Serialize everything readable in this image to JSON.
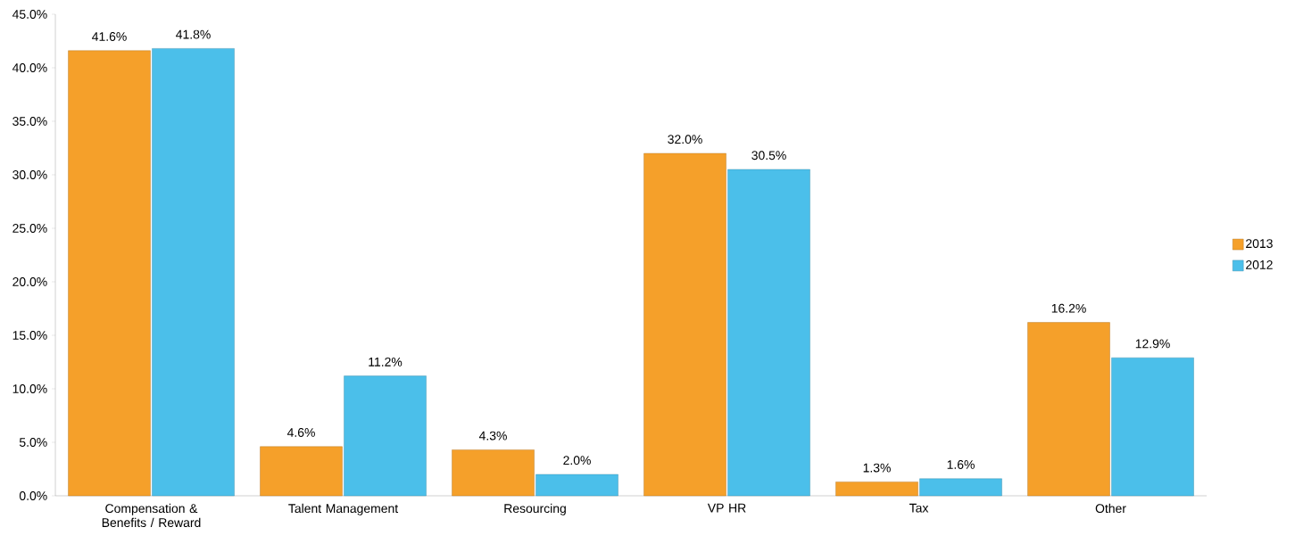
{
  "chart_data": {
    "type": "bar",
    "categories": [
      "Compensation & Benefits / Reward",
      "Talent Management",
      "Resourcing",
      "VP HR",
      "Tax",
      "Other"
    ],
    "series": [
      {
        "name": "2013",
        "color": "#f5a02a",
        "values": [
          41.6,
          4.6,
          4.3,
          32.0,
          1.3,
          16.2
        ],
        "value_labels": [
          "41.6%",
          "4.6%",
          "4.3%",
          "32.0%",
          "1.3%",
          "16.2%"
        ]
      },
      {
        "name": "2012",
        "color": "#4bbfea",
        "values": [
          41.8,
          11.2,
          2.0,
          30.5,
          1.6,
          12.9
        ],
        "value_labels": [
          "41.8%",
          "11.2%",
          "2.0%",
          "30.5%",
          "1.6%",
          "12.9%"
        ]
      }
    ],
    "ylim": [
      0,
      45
    ],
    "yticks": [
      {
        "value": 0,
        "label": "0.0%"
      },
      {
        "value": 5,
        "label": "5.0%"
      },
      {
        "value": 10,
        "label": "10.0%"
      },
      {
        "value": 15,
        "label": "15.0%"
      },
      {
        "value": 20,
        "label": "20.0%"
      },
      {
        "value": 25,
        "label": "25.0%"
      },
      {
        "value": 30,
        "label": "30.0%"
      },
      {
        "value": 35,
        "label": "35.0%"
      },
      {
        "value": 40,
        "label": "40.0%"
      },
      {
        "value": 45,
        "label": "45.0%"
      }
    ],
    "grid": false,
    "legend": "right"
  }
}
